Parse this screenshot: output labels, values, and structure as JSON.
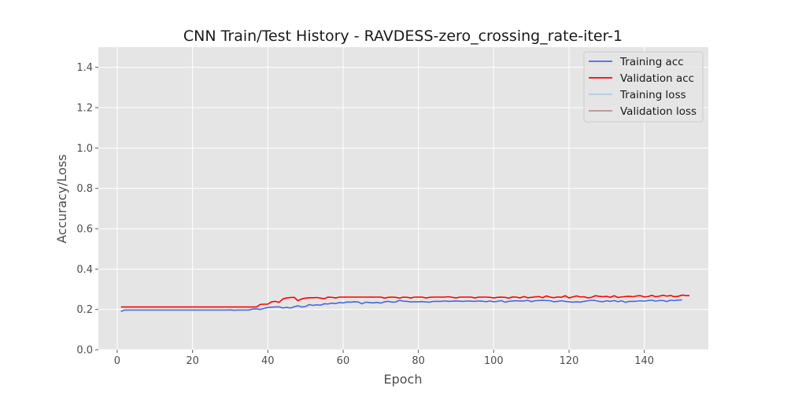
{
  "chart_data": {
    "type": "line",
    "title": "CNN Train/Test History -  RAVDESS-zero_crossing_rate-iter-1",
    "xlabel": "Epoch",
    "ylabel": "Accuracy/Loss",
    "xlim": [
      -5,
      157
    ],
    "ylim": [
      0,
      1.5
    ],
    "xticks": [
      0,
      20,
      40,
      60,
      80,
      100,
      120,
      140
    ],
    "yticks": [
      0.0,
      0.2,
      0.4,
      0.6,
      0.8,
      1.0,
      1.2,
      1.4
    ],
    "xtick_labels": [
      "0",
      "20",
      "40",
      "60",
      "80",
      "100",
      "120",
      "140"
    ],
    "ytick_labels": [
      "0.0",
      "0.2",
      "0.4",
      "0.6",
      "0.8",
      "1.0",
      "1.2",
      "1.4"
    ],
    "grid": true,
    "background_color": "#e5e5e5",
    "legend_position": "top-right",
    "series": [
      {
        "name": "Training acc",
        "color": "#4169e1",
        "x_start": 1,
        "values": [
          0.19,
          0.197,
          0.197,
          0.197,
          0.197,
          0.197,
          0.197,
          0.197,
          0.197,
          0.197,
          0.197,
          0.197,
          0.197,
          0.197,
          0.197,
          0.197,
          0.197,
          0.197,
          0.197,
          0.197,
          0.197,
          0.197,
          0.197,
          0.197,
          0.197,
          0.197,
          0.197,
          0.197,
          0.197,
          0.198,
          0.196,
          0.197,
          0.197,
          0.197,
          0.197,
          0.202,
          0.203,
          0.2,
          0.205,
          0.21,
          0.211,
          0.212,
          0.213,
          0.207,
          0.21,
          0.207,
          0.213,
          0.218,
          0.212,
          0.214,
          0.224,
          0.22,
          0.223,
          0.221,
          0.228,
          0.227,
          0.231,
          0.229,
          0.234,
          0.232,
          0.237,
          0.236,
          0.238,
          0.237,
          0.228,
          0.236,
          0.234,
          0.232,
          0.235,
          0.231,
          0.238,
          0.24,
          0.236,
          0.237,
          0.245,
          0.241,
          0.24,
          0.237,
          0.238,
          0.238,
          0.239,
          0.237,
          0.236,
          0.24,
          0.24,
          0.24,
          0.242,
          0.24,
          0.241,
          0.242,
          0.241,
          0.24,
          0.242,
          0.241,
          0.24,
          0.242,
          0.241,
          0.238,
          0.242,
          0.238,
          0.24,
          0.244,
          0.236,
          0.24,
          0.242,
          0.243,
          0.242,
          0.242,
          0.245,
          0.239,
          0.243,
          0.244,
          0.245,
          0.244,
          0.243,
          0.238,
          0.24,
          0.243,
          0.24,
          0.238,
          0.236,
          0.238,
          0.236,
          0.24,
          0.243,
          0.246,
          0.244,
          0.24,
          0.238,
          0.243,
          0.24,
          0.244,
          0.238,
          0.243,
          0.235,
          0.24,
          0.24,
          0.241,
          0.243,
          0.241,
          0.244,
          0.246,
          0.241,
          0.244,
          0.244,
          0.239,
          0.246,
          0.244,
          0.246,
          0.247
        ]
      },
      {
        "name": "Validation acc",
        "color": "#ff0000",
        "x_start": 1,
        "values": [
          0.212,
          0.212,
          0.212,
          0.212,
          0.212,
          0.212,
          0.212,
          0.212,
          0.212,
          0.212,
          0.212,
          0.212,
          0.212,
          0.212,
          0.212,
          0.212,
          0.212,
          0.212,
          0.212,
          0.212,
          0.212,
          0.212,
          0.212,
          0.212,
          0.212,
          0.212,
          0.212,
          0.212,
          0.212,
          0.212,
          0.212,
          0.212,
          0.212,
          0.212,
          0.212,
          0.212,
          0.212,
          0.225,
          0.226,
          0.226,
          0.238,
          0.24,
          0.235,
          0.252,
          0.257,
          0.259,
          0.26,
          0.243,
          0.252,
          0.256,
          0.258,
          0.258,
          0.259,
          0.256,
          0.253,
          0.261,
          0.26,
          0.257,
          0.261,
          0.261,
          0.261,
          0.261,
          0.261,
          0.261,
          0.261,
          0.261,
          0.261,
          0.261,
          0.261,
          0.261,
          0.256,
          0.26,
          0.261,
          0.26,
          0.256,
          0.261,
          0.26,
          0.257,
          0.261,
          0.261,
          0.261,
          0.257,
          0.26,
          0.261,
          0.261,
          0.261,
          0.261,
          0.263,
          0.26,
          0.257,
          0.261,
          0.261,
          0.261,
          0.261,
          0.257,
          0.261,
          0.261,
          0.261,
          0.26,
          0.257,
          0.26,
          0.261,
          0.26,
          0.256,
          0.262,
          0.261,
          0.257,
          0.264,
          0.258,
          0.26,
          0.262,
          0.264,
          0.258,
          0.267,
          0.261,
          0.258,
          0.262,
          0.26,
          0.268,
          0.257,
          0.262,
          0.267,
          0.262,
          0.263,
          0.257,
          0.26,
          0.268,
          0.265,
          0.263,
          0.265,
          0.26,
          0.268,
          0.259,
          0.262,
          0.264,
          0.265,
          0.263,
          0.267,
          0.268,
          0.262,
          0.264,
          0.27,
          0.263,
          0.266,
          0.27,
          0.266,
          0.269,
          0.263,
          0.265,
          0.271,
          0.269,
          0.268
        ]
      },
      {
        "name": "Training loss",
        "color": "#aec7e8",
        "values": []
      },
      {
        "name": "Validation loss",
        "color": "#bc8f8f",
        "values": []
      }
    ]
  }
}
